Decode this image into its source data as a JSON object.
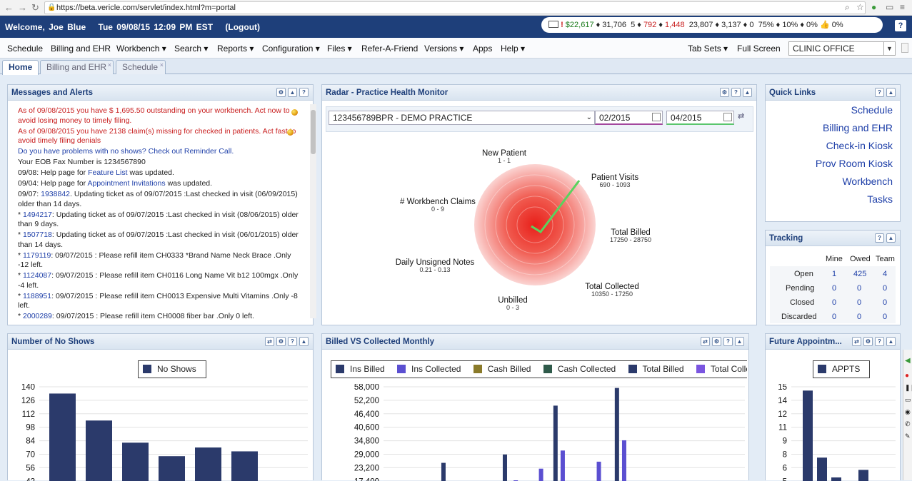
{
  "browser": {
    "url": "https://beta.vericle.com/servlet/index.html?m=portal"
  },
  "topbar": {
    "welcome": "Welcome, Joe Blue",
    "datetime": "Tue 09/08/15 12:09 PM EST",
    "logout": "(Logout)",
    "stats": {
      "s1": "$22,617",
      "s2": "♦ 31,706",
      "s3": "5 ♦",
      "s4": "792",
      "s5": "♦",
      "s6": "1,448",
      "s7": "23,807 ♦ 3,137 ♦ 0",
      "s8": "75% ♦ 10% ♦ 0%",
      "s9": "0%"
    },
    "help": "?"
  },
  "menu": {
    "items": [
      "Schedule",
      "Billing and EHR",
      "Workbench ▾",
      "Search ▾",
      "Reports ▾",
      "Configuration ▾",
      "Files ▾",
      "Refer-A-Friend",
      "Versions ▾",
      "Apps",
      "Help ▾"
    ],
    "tabsets": "Tab Sets ▾",
    "fullscreen": "Full Screen",
    "clinic": "CLINIC OFFICE"
  },
  "tabs": [
    {
      "label": "Home"
    },
    {
      "label": "Billing and EHR"
    },
    {
      "label": "Schedule"
    }
  ],
  "messages": {
    "title": "Messages and Alerts",
    "items": [
      {
        "text": "As of 09/08/2015 you have $ 1,695.50 outstanding on your workbench. Act now to avoid losing money to timely filing."
      },
      {
        "text": "As of 09/08/2015 you have 2138 claim(s) missing for checked in patients. Act fast to avoid timely filing denials"
      },
      {
        "text": "Do you have problems with no shows? Check out Reminder Call."
      },
      {
        "text": "Your EOB Fax Number is 1234567890"
      },
      {
        "pre": "09/08: Help page for ",
        "link": "Feature List",
        "post": " was updated."
      },
      {
        "pre": "09/04: Help page for ",
        "link": "Appointment Invitations",
        "post": " was updated."
      },
      {
        "pre": "09/07: ",
        "link": "1938842",
        "post": ". Updating ticket as of 09/07/2015 :Last checked in visit (06/09/2015) older than 14 days."
      },
      {
        "pre": "* ",
        "link": "1494217",
        "post": ": Updating ticket as of 09/07/2015 :Last checked in visit (08/06/2015) older than 9 days."
      },
      {
        "pre": "* ",
        "link": "1507718",
        "post": ": Updating ticket as of 09/07/2015 :Last checked in visit (06/01/2015) older than 14 days."
      },
      {
        "pre": "* ",
        "link": "1179119",
        "post": ": 09/07/2015 : Please refill item CH0333 *Brand Name Neck Brace .Only -12 left."
      },
      {
        "pre": "* ",
        "link": "1124087",
        "post": ": 09/07/2015 : Please refill item CH0116 Long Name Vit b12 100mgx .Only -4 left."
      },
      {
        "pre": "* ",
        "link": "1188951",
        "post": ": 09/07/2015 : Please refill item CH0013 Expensive Multi Vitamins .Only -8 left."
      },
      {
        "pre": "* ",
        "link": "2000289",
        "post": ": 09/07/2015 : Please refill item CH0008 fiber bar .Only 0 left."
      }
    ]
  },
  "radar": {
    "title": "Radar - Practice Health Monitor",
    "practice": "123456789BPR - DEMO PRACTICE",
    "from": "02/2015",
    "to": "04/2015",
    "labels": [
      {
        "name": "New Patient",
        "range": "1 - 1"
      },
      {
        "name": "Patient Visits",
        "range": "690 - 1093"
      },
      {
        "name": "Total Billed",
        "range": "17250 - 28750"
      },
      {
        "name": "Total Collected",
        "range": "10350 - 17250"
      },
      {
        "name": "Unbilled",
        "range": "0 - 3"
      },
      {
        "name": "Daily Unsigned Notes",
        "range": "0.21 - 0.13"
      },
      {
        "name": "# Workbench Claims",
        "range": "0 - 9"
      }
    ]
  },
  "quicklinks": {
    "title": "Quick Links",
    "items": [
      "Schedule",
      "Billing and EHR",
      "Check-in Kiosk",
      "Prov Room Kiosk",
      "Workbench",
      "Tasks"
    ]
  },
  "tracking": {
    "title": "Tracking",
    "cols": [
      "Mine",
      "Owed",
      "Team"
    ],
    "rows": [
      {
        "label": "Open",
        "v": [
          "1",
          "425",
          "4"
        ]
      },
      {
        "label": "Pending",
        "v": [
          "0",
          "0",
          "0"
        ]
      },
      {
        "label": "Closed",
        "v": [
          "0",
          "0",
          "0"
        ]
      },
      {
        "label": "Discarded",
        "v": [
          "0",
          "0",
          "0"
        ]
      }
    ]
  },
  "noshows": {
    "title": "Number of No Shows",
    "legend": "No Shows"
  },
  "billed": {
    "title": "Billed VS Collected Monthly",
    "legend": [
      "Ins Billed",
      "Ins Collected",
      "Cash Billed",
      "Cash Collected",
      "Total Billed",
      "Total Collec"
    ]
  },
  "future": {
    "title": "Future Appointm...",
    "legend": "APPTS"
  },
  "chart_data": [
    {
      "type": "bar",
      "series": [
        {
          "name": "No Shows",
          "values": [
            133,
            105,
            82,
            68,
            77,
            73
          ]
        }
      ],
      "categories": [
        "",
        "",
        "",
        "",
        "",
        ""
      ],
      "yticks": [
        "140",
        "126",
        "112",
        "98",
        "84",
        "70",
        "56",
        "42"
      ],
      "ylim": [
        42,
        140
      ],
      "color": "#2b3a6b"
    },
    {
      "type": "bar",
      "yticks": [
        "58,000",
        "52,200",
        "46,400",
        "40,600",
        "34,800",
        "29,000",
        "23,200",
        "17,400"
      ],
      "ylim": [
        17400,
        58000
      ],
      "colors": [
        "#2b3a6b",
        "#5b4fd1",
        "#8a7a2a",
        "#2f5a4a",
        "#2b3a6b",
        "#7a55e0"
      ],
      "bars": [
        {
          "x": 0.16,
          "value": 25300,
          "series": 0
        },
        {
          "x": 0.33,
          "value": 28900,
          "series": 0
        },
        {
          "x": 0.36,
          "value": 17800,
          "series": 1
        },
        {
          "x": 0.43,
          "value": 22800,
          "series": 1
        },
        {
          "x": 0.47,
          "value": 49900,
          "series": 0
        },
        {
          "x": 0.49,
          "value": 30600,
          "series": 1
        },
        {
          "x": 0.59,
          "value": 25800,
          "series": 1
        },
        {
          "x": 0.64,
          "value": 57500,
          "series": 0
        },
        {
          "x": 0.66,
          "value": 35000,
          "series": 1
        }
      ]
    },
    {
      "type": "bar",
      "series": [
        {
          "name": "APPTS",
          "values": [
            14.6,
            7.5,
            5.4,
            6.2
          ]
        }
      ],
      "yticks": [
        "15",
        "14",
        "12",
        "11",
        "9",
        "8",
        "6",
        "5"
      ],
      "ylim": [
        5,
        15
      ],
      "color": "#2b3a6b"
    }
  ]
}
